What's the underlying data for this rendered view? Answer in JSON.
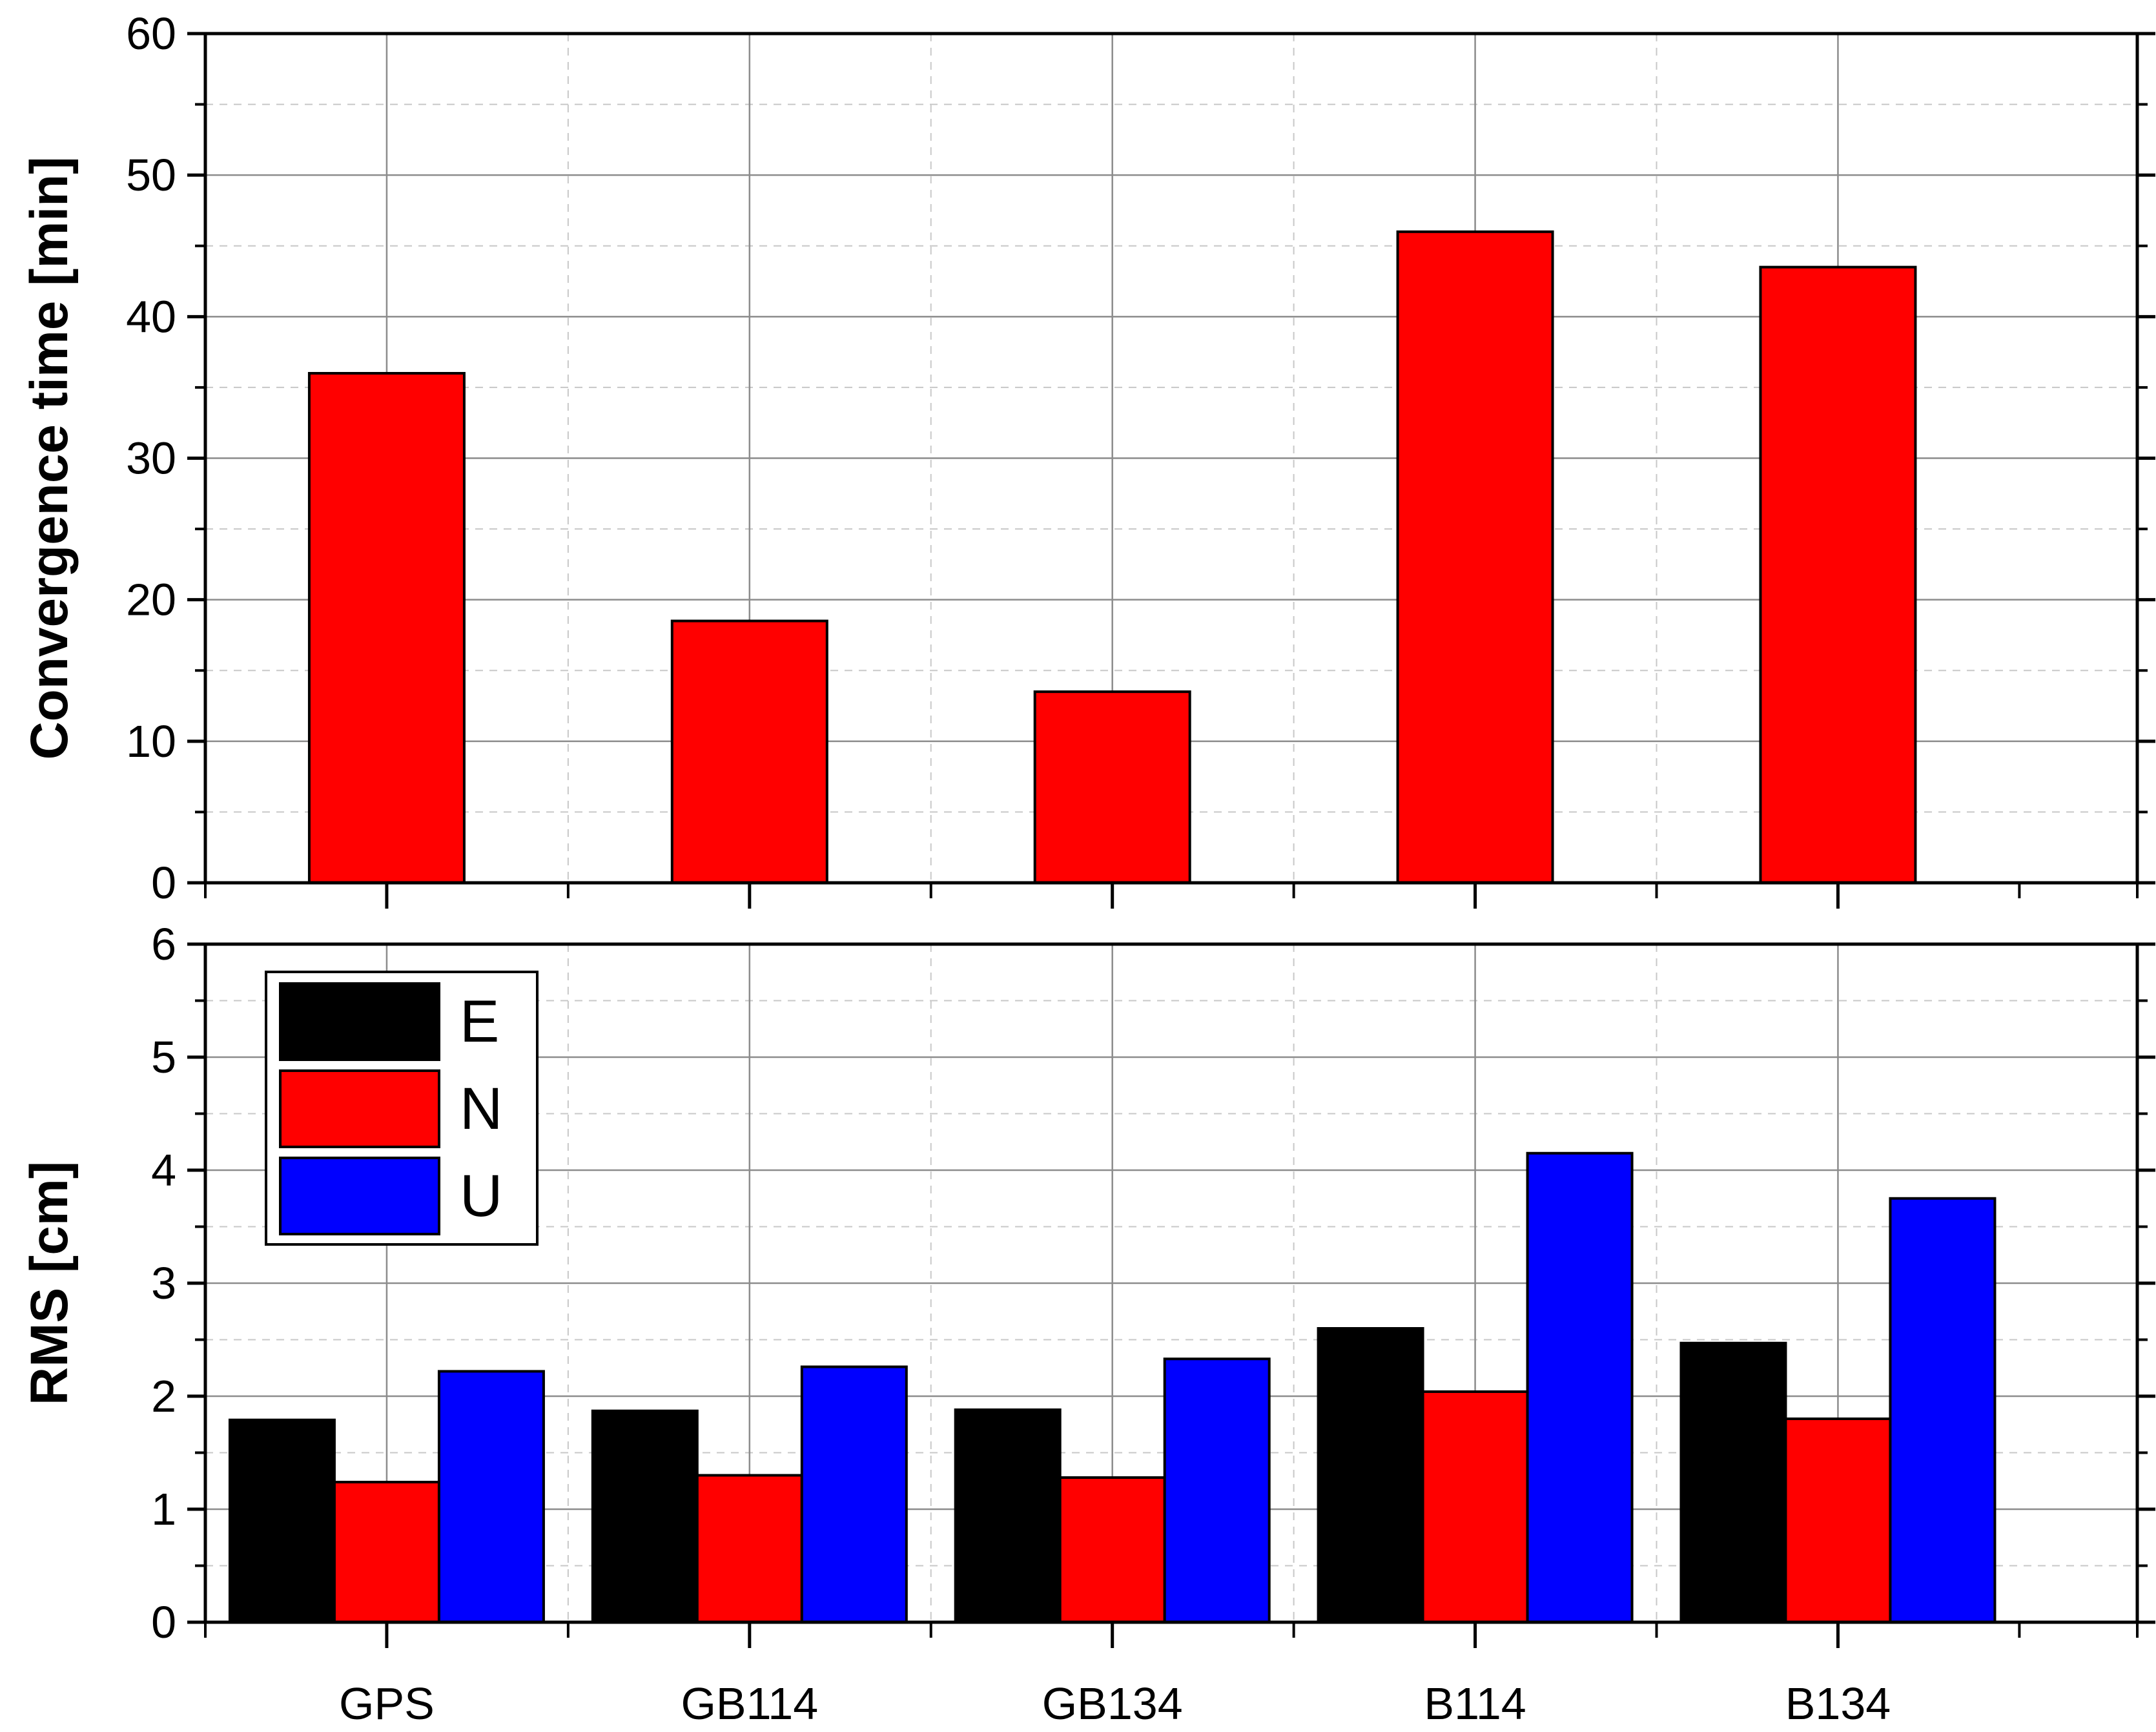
{
  "chart_data": [
    {
      "type": "bar",
      "categories": [
        "GPS",
        "GB114",
        "GB134",
        "B114",
        "B134"
      ],
      "series": [
        {
          "values": [
            36,
            18.5,
            13.5,
            46,
            43.5
          ],
          "color": "#ff0000"
        }
      ],
      "xlabel": "",
      "ylabel": "Convergence time [min]",
      "ylim": [
        0,
        60
      ],
      "yticks": [
        0,
        10,
        20,
        30,
        40,
        50,
        60
      ],
      "grid": true
    },
    {
      "type": "bar",
      "categories": [
        "GPS",
        "GB114",
        "GB134",
        "B114",
        "B134"
      ],
      "series": [
        {
          "name": "E",
          "values": [
            1.79,
            1.87,
            1.88,
            2.6,
            2.47
          ],
          "color": "#000000"
        },
        {
          "name": "N",
          "values": [
            1.24,
            1.3,
            1.28,
            2.04,
            1.8
          ],
          "color": "#ff0000"
        },
        {
          "name": "U",
          "values": [
            2.22,
            2.26,
            2.33,
            4.15,
            3.75
          ],
          "color": "#0000ff"
        }
      ],
      "xlabel": "",
      "ylabel": "RMS [cm]",
      "ylim": [
        0,
        6
      ],
      "yticks": [
        0,
        1,
        2,
        3,
        4,
        5,
        6
      ],
      "grid": true,
      "legend_position": "top-left"
    }
  ]
}
